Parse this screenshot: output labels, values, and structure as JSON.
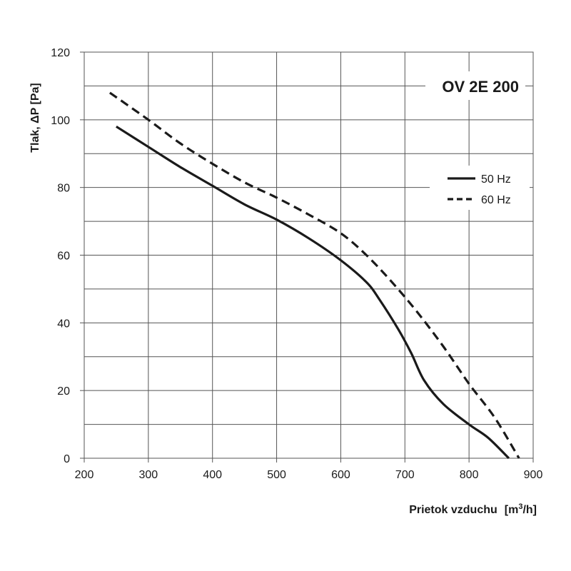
{
  "chart_data": {
    "type": "line",
    "title": "OV 2E 200",
    "xlabel": "Prietok vzduchu  [m³/h]",
    "xlabel_main": "Prietok vzduchu",
    "xlabel_unit_pre": "[m",
    "xlabel_unit_sup": "3",
    "xlabel_unit_post": "/h]",
    "ylabel": "Tlak, ΔP [Pa]",
    "xlim": [
      200,
      900
    ],
    "ylim": [
      0,
      120
    ],
    "x_ticks": [
      200,
      300,
      400,
      500,
      600,
      700,
      800,
      900
    ],
    "y_ticks": [
      0,
      20,
      40,
      60,
      80,
      100,
      120
    ],
    "grid": true,
    "legend_position": "right",
    "series": [
      {
        "name": "50 Hz",
        "line_style": "solid",
        "color": "#1a1a1a",
        "points": [
          [
            250,
            98
          ],
          [
            300,
            92
          ],
          [
            350,
            86
          ],
          [
            400,
            80.5
          ],
          [
            450,
            75
          ],
          [
            500,
            70.5
          ],
          [
            550,
            65
          ],
          [
            600,
            58.5
          ],
          [
            640,
            52
          ],
          [
            660,
            47
          ],
          [
            690,
            38
          ],
          [
            710,
            31
          ],
          [
            730,
            23
          ],
          [
            760,
            16
          ],
          [
            800,
            10
          ],
          [
            830,
            6
          ],
          [
            862,
            0
          ]
        ]
      },
      {
        "name": "60 Hz",
        "line_style": "dashed",
        "color": "#1a1a1a",
        "points": [
          [
            240,
            108
          ],
          [
            300,
            100
          ],
          [
            350,
            93
          ],
          [
            400,
            87
          ],
          [
            450,
            81.5
          ],
          [
            500,
            77
          ],
          [
            550,
            72
          ],
          [
            600,
            66.5
          ],
          [
            640,
            60
          ],
          [
            680,
            52
          ],
          [
            720,
            43
          ],
          [
            760,
            33
          ],
          [
            800,
            22
          ],
          [
            840,
            12
          ],
          [
            878,
            0
          ]
        ]
      }
    ]
  }
}
